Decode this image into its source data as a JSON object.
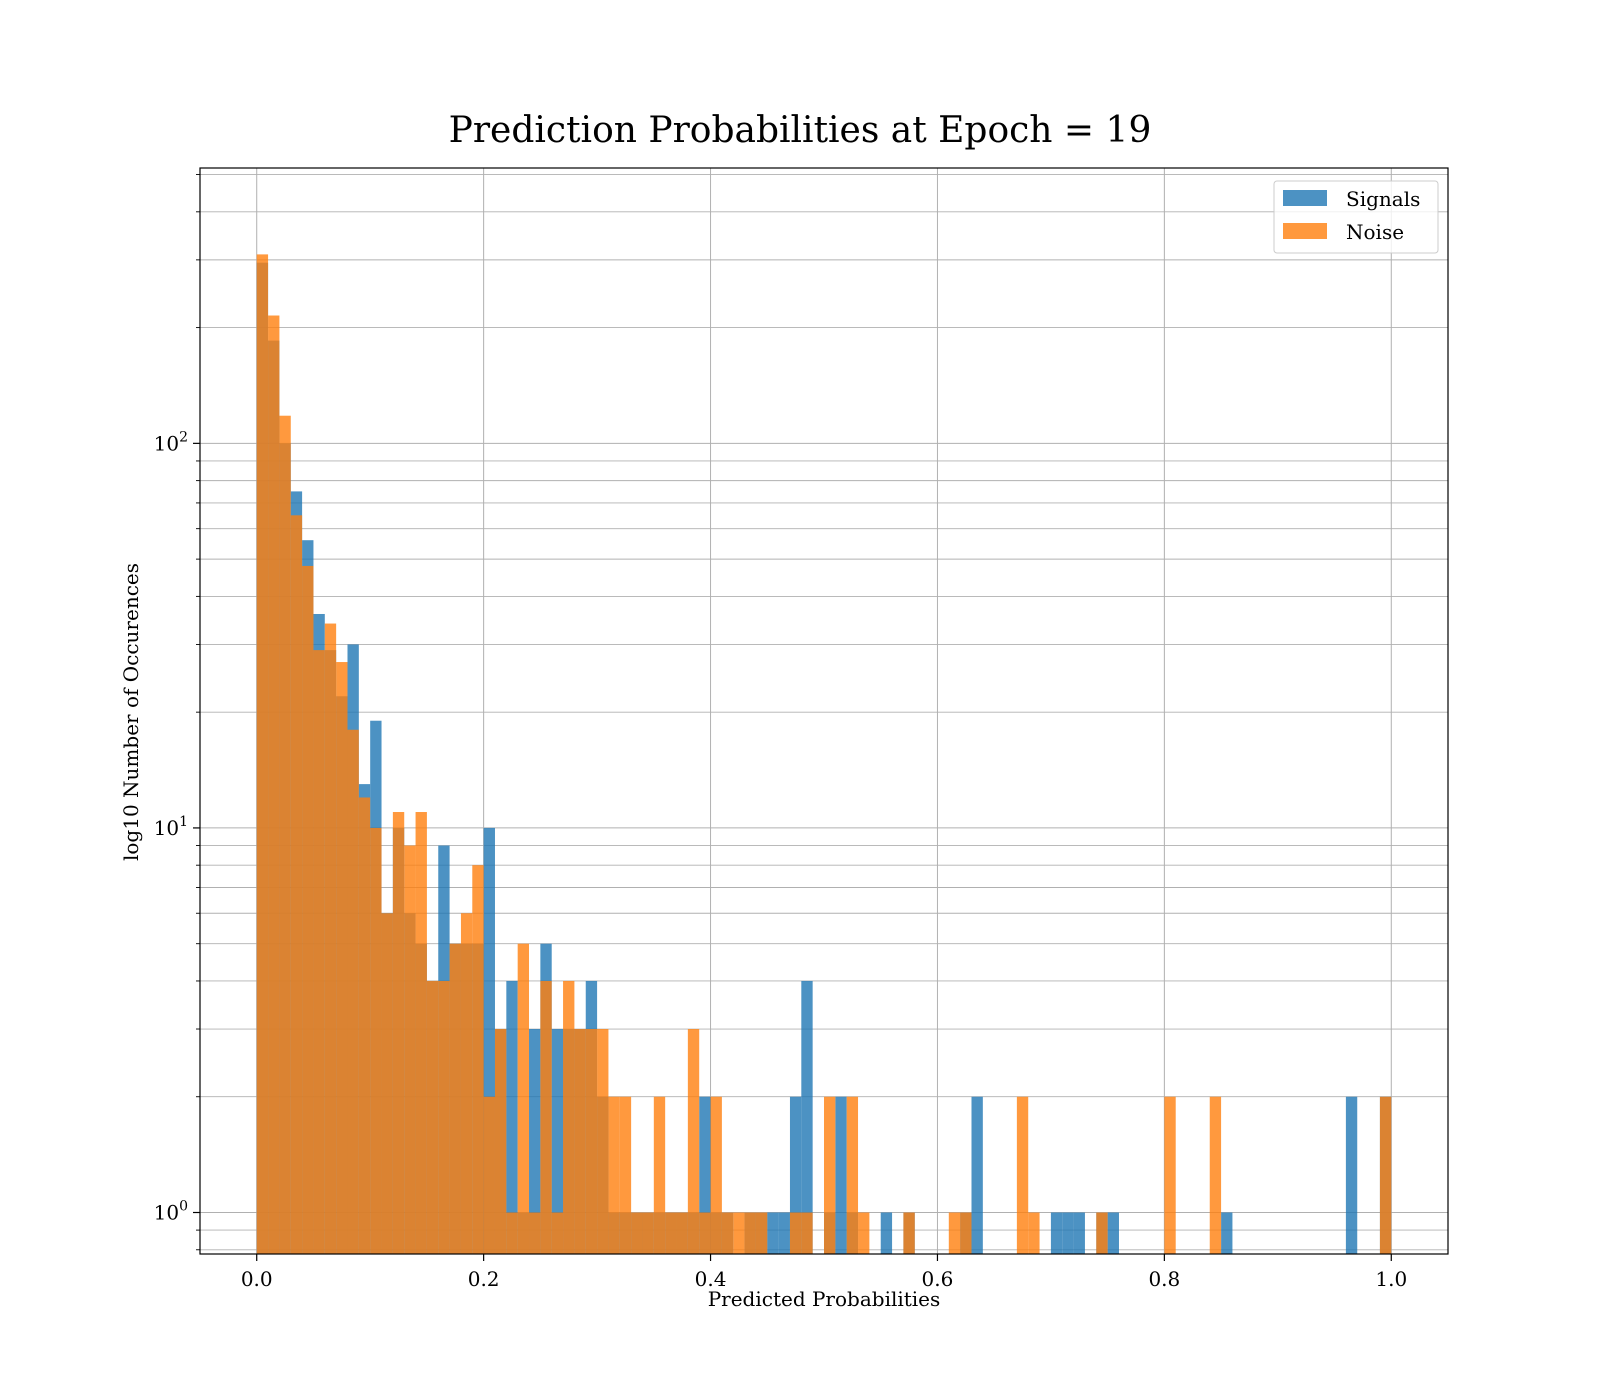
{
  "chart_data": {
    "type": "bar",
    "title": "Prediction Probabilities at Epoch = 19",
    "xlabel": "Predicted Probabilities",
    "ylabel": "log10 Number of Occurences",
    "xlim": [
      -0.05,
      1.05
    ],
    "ylim": [
      0.78,
      520
    ],
    "yscale": "log",
    "grid": true,
    "legend_position": "top-right",
    "x_ticks": [
      0.0,
      0.2,
      0.4,
      0.6,
      0.8,
      1.0
    ],
    "x_tick_labels": [
      "0.0",
      "0.2",
      "0.4",
      "0.6",
      "0.8",
      "1.0"
    ],
    "y_ticks": [
      1,
      10,
      100
    ],
    "y_tick_labels": [
      {
        "base": "10",
        "exp": "0"
      },
      {
        "base": "10",
        "exp": "1"
      },
      {
        "base": "10",
        "exp": "2"
      }
    ],
    "series": [
      {
        "name": "Signals",
        "color": "#1f77b4",
        "bin_edges": [
          0.0,
          0.01,
          0.02,
          0.03,
          0.04,
          0.05,
          0.06,
          0.07,
          0.08,
          0.09,
          0.1,
          0.11,
          0.12,
          0.13,
          0.14,
          0.15,
          0.16,
          0.17,
          0.18,
          0.19,
          0.2,
          0.21,
          0.22,
          0.23,
          0.24,
          0.25,
          0.26,
          0.27,
          0.28,
          0.29,
          0.3,
          0.31,
          0.32,
          0.33,
          0.34,
          0.35,
          0.36,
          0.37,
          0.38,
          0.39,
          0.4,
          0.41,
          0.42,
          0.43,
          0.44,
          0.45,
          0.46,
          0.47,
          0.48,
          0.49,
          0.5,
          0.51,
          0.52,
          0.53,
          0.54,
          0.55,
          0.56,
          0.57,
          0.58,
          0.59,
          0.6,
          0.61,
          0.62,
          0.63,
          0.64,
          0.65,
          0.66,
          0.67,
          0.68,
          0.69,
          0.7,
          0.71,
          0.72,
          0.73,
          0.74,
          0.75,
          0.76,
          0.77,
          0.78,
          0.79,
          0.8,
          0.81,
          0.82,
          0.83,
          0.84,
          0.85,
          0.86,
          0.87,
          0.88,
          0.89,
          0.9,
          0.91,
          0.92,
          0.93,
          0.94,
          0.95,
          0.96,
          0.97,
          0.98,
          0.99,
          1.0
        ],
        "counts": [
          295,
          185,
          100,
          75,
          56,
          36,
          29,
          22,
          30,
          13,
          19,
          6,
          10,
          6,
          5,
          4,
          9,
          5,
          5,
          5,
          10,
          3,
          4,
          1,
          3,
          5,
          3,
          3,
          3,
          4,
          2,
          1,
          1,
          1,
          1,
          1,
          1,
          1,
          1,
          2,
          1,
          1,
          0,
          1,
          1,
          1,
          1,
          2,
          4,
          0,
          1,
          2,
          1,
          0,
          0,
          1,
          0,
          1,
          0,
          0,
          0,
          0,
          1,
          2,
          0,
          0,
          0,
          0,
          0,
          0,
          1,
          1,
          1,
          0,
          1,
          1,
          0,
          0,
          0,
          0,
          0,
          0,
          0,
          0,
          0,
          1,
          0,
          0,
          0,
          0,
          0,
          0,
          0,
          0,
          0,
          0,
          2,
          0,
          0,
          2
        ]
      },
      {
        "name": "Noise",
        "color": "#ff7f0e",
        "bin_edges": [
          0.0,
          0.01,
          0.02,
          0.03,
          0.04,
          0.05,
          0.06,
          0.07,
          0.08,
          0.09,
          0.1,
          0.11,
          0.12,
          0.13,
          0.14,
          0.15,
          0.16,
          0.17,
          0.18,
          0.19,
          0.2,
          0.21,
          0.22,
          0.23,
          0.24,
          0.25,
          0.26,
          0.27,
          0.28,
          0.29,
          0.3,
          0.31,
          0.32,
          0.33,
          0.34,
          0.35,
          0.36,
          0.37,
          0.38,
          0.39,
          0.4,
          0.41,
          0.42,
          0.43,
          0.44,
          0.45,
          0.46,
          0.47,
          0.48,
          0.49,
          0.5,
          0.51,
          0.52,
          0.53,
          0.54,
          0.55,
          0.56,
          0.57,
          0.58,
          0.59,
          0.6,
          0.61,
          0.62,
          0.63,
          0.64,
          0.65,
          0.66,
          0.67,
          0.68,
          0.69,
          0.7,
          0.71,
          0.72,
          0.73,
          0.74,
          0.75,
          0.76,
          0.77,
          0.78,
          0.79,
          0.8,
          0.81,
          0.82,
          0.83,
          0.84,
          0.85,
          0.86,
          0.87,
          0.88,
          0.89,
          0.9,
          0.91,
          0.92,
          0.93,
          0.94,
          0.95,
          0.96,
          0.97,
          0.98,
          0.99,
          1.0
        ],
        "counts": [
          310,
          215,
          118,
          65,
          48,
          29,
          34,
          27,
          18,
          12,
          10,
          6,
          11,
          9,
          11,
          4,
          4,
          5,
          6,
          8,
          2,
          3,
          1,
          5,
          1,
          4,
          1,
          4,
          3,
          3,
          3,
          2,
          2,
          1,
          1,
          2,
          1,
          1,
          3,
          1,
          2,
          1,
          1,
          1,
          1,
          0,
          0,
          1,
          1,
          0,
          2,
          0,
          2,
          1,
          0,
          0,
          0,
          1,
          0,
          0,
          0,
          1,
          1,
          0,
          0,
          0,
          0,
          2,
          1,
          0,
          0,
          0,
          0,
          0,
          1,
          0,
          0,
          0,
          0,
          0,
          2,
          0,
          0,
          0,
          2,
          0,
          0,
          0,
          0,
          0,
          0,
          0,
          0,
          0,
          0,
          0,
          0,
          0,
          0,
          2
        ]
      }
    ]
  }
}
